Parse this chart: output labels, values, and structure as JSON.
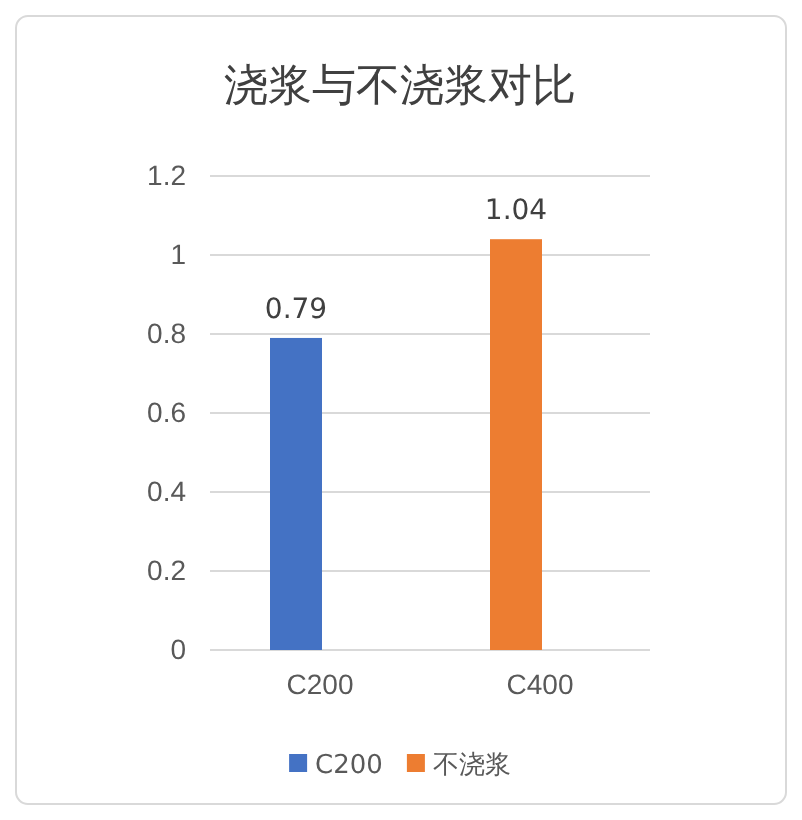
{
  "chart_data": {
    "type": "bar",
    "title": "浇浆与不浇浆对比",
    "categories": [
      "C200",
      "C400"
    ],
    "series": [
      {
        "name": "C200",
        "color": "#4472c4",
        "values": [
          0.79,
          null
        ]
      },
      {
        "name": "不浇浆",
        "color": "#ed7d31",
        "values": [
          null,
          1.04
        ]
      }
    ],
    "ylim": [
      0,
      1.2
    ],
    "yticks": [
      0,
      0.2,
      0.4,
      0.6,
      0.8,
      1,
      1.2
    ],
    "grid": "y",
    "legend": "bottom",
    "data_labels": true
  }
}
